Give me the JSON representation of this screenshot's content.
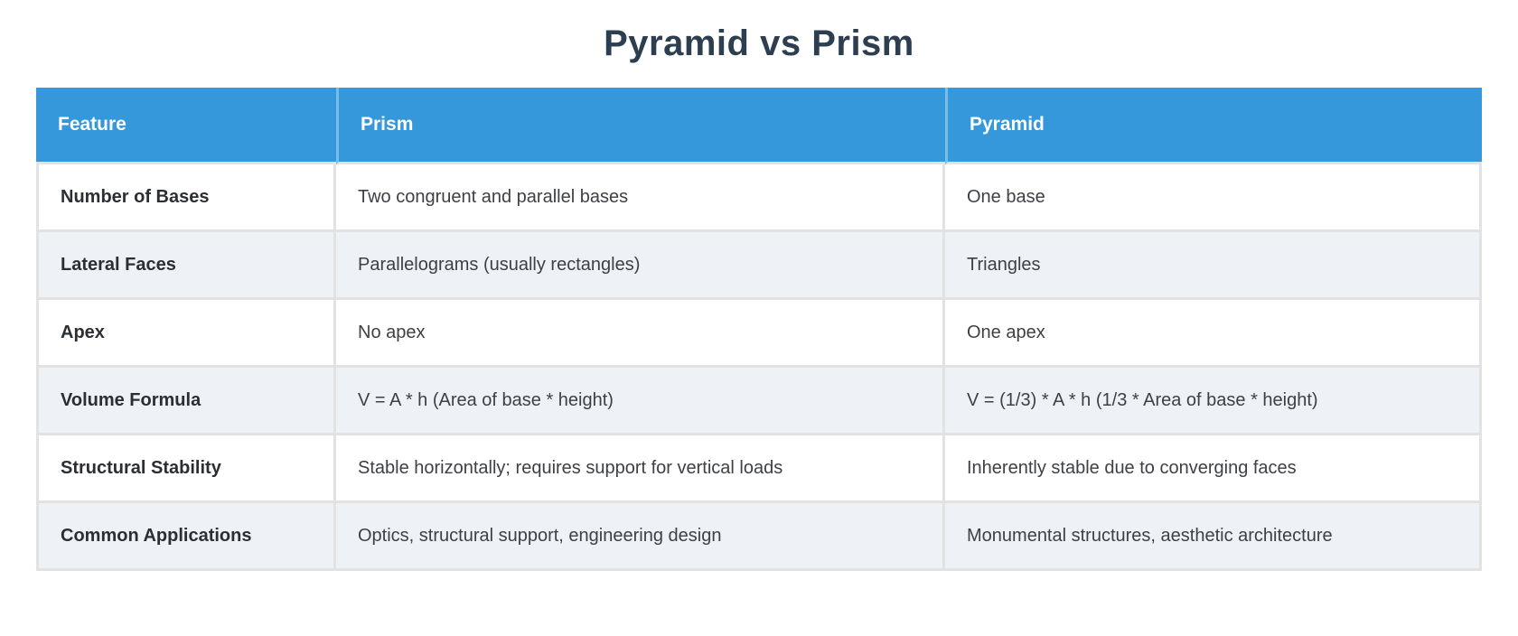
{
  "page": {
    "title": "Pyramid vs Prism"
  },
  "table": {
    "columns": [
      "Feature",
      "Prism",
      "Pyramid"
    ],
    "rows": [
      {
        "feature": "Number of Bases",
        "prism": "Two congruent and parallel bases",
        "pyramid": "One base"
      },
      {
        "feature": "Lateral Faces",
        "prism": "Parallelograms (usually rectangles)",
        "pyramid": "Triangles"
      },
      {
        "feature": "Apex",
        "prism": "No apex",
        "pyramid": "One apex"
      },
      {
        "feature": "Volume Formula",
        "prism": "V = A * h (Area of base * height)",
        "pyramid": "V = (1/3) * A * h (1/3 * Area of base * height)"
      },
      {
        "feature": "Structural Stability",
        "prism": "Stable horizontally; requires support for vertical loads",
        "pyramid": "Inherently stable due to converging faces"
      },
      {
        "feature": "Common Applications",
        "prism": "Optics, structural support, engineering design",
        "pyramid": "Monumental structures, aesthetic architecture"
      }
    ]
  },
  "colors": {
    "title": "#2c3e50",
    "header_bg": "#3498db",
    "header_text": "#ffffff",
    "row_alt_bg": "#eef2f7",
    "border": "#e2e2e2",
    "body_text": "#3d4044",
    "feature_text": "#2b2f33"
  }
}
